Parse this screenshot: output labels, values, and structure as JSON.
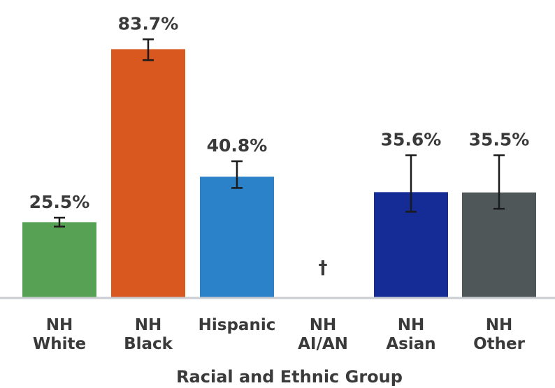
{
  "chart_data": {
    "type": "bar",
    "title": "",
    "xlabel": "Racial and Ethnic Group",
    "ylabel": "",
    "ylim": [
      0,
      100
    ],
    "grid": false,
    "legend": "none",
    "categories": [
      [
        "NH",
        "White"
      ],
      [
        "NH",
        "Black"
      ],
      [
        "Hispanic"
      ],
      [
        "NH",
        "AI/AN"
      ],
      [
        "NH",
        "Asian"
      ],
      [
        "NH",
        "Other"
      ]
    ],
    "values": [
      25.5,
      83.7,
      40.8,
      null,
      35.6,
      35.5
    ],
    "value_labels": [
      "25.5%",
      "83.7%",
      "40.8%",
      "",
      "35.6%",
      "35.5%"
    ],
    "error_low": [
      24.0,
      80.0,
      37.0,
      null,
      29.0,
      30.0
    ],
    "error_high": [
      27.0,
      87.0,
      46.0,
      null,
      48.0,
      48.0
    ],
    "suppressed_marker": "†",
    "colors": [
      "#57A155",
      "#D95820",
      "#2B82C8",
      "#ffffff",
      "#152C97",
      "#4F5758"
    ]
  }
}
